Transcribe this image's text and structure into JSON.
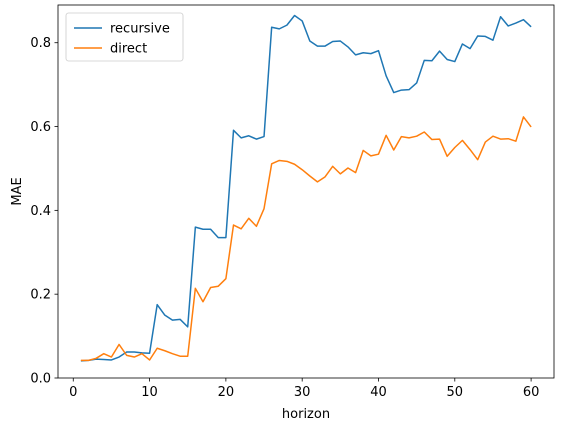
{
  "chart_data": {
    "type": "line",
    "title": "",
    "xlabel": "horizon",
    "ylabel": "MAE",
    "xlim": [
      -2,
      63
    ],
    "ylim": [
      0.0,
      0.89
    ],
    "xticks": [
      0,
      10,
      20,
      30,
      40,
      50,
      60
    ],
    "yticks": [
      0.0,
      0.2,
      0.4,
      0.6,
      0.8
    ],
    "xtick_labels": [
      "0",
      "10",
      "20",
      "30",
      "40",
      "50",
      "60"
    ],
    "ytick_labels": [
      "0.0",
      "0.2",
      "0.4",
      "0.6",
      "0.8"
    ],
    "grid": false,
    "legend_position": "top-left",
    "x": [
      1,
      2,
      3,
      4,
      5,
      6,
      7,
      8,
      9,
      10,
      11,
      12,
      13,
      14,
      15,
      16,
      17,
      18,
      19,
      20,
      21,
      22,
      23,
      24,
      25,
      26,
      27,
      28,
      29,
      30,
      31,
      32,
      33,
      34,
      35,
      36,
      37,
      38,
      39,
      40,
      41,
      42,
      43,
      44,
      45,
      46,
      47,
      48,
      49,
      50,
      51,
      52,
      53,
      54,
      55,
      56,
      57,
      58,
      59,
      60
    ],
    "series": [
      {
        "name": "recursive",
        "color": "#1f77b4",
        "values": [
          0.041,
          0.042,
          0.045,
          0.044,
          0.043,
          0.05,
          0.062,
          0.062,
          0.06,
          0.059,
          0.175,
          0.15,
          0.138,
          0.14,
          0.122,
          0.36,
          0.355,
          0.355,
          0.335,
          0.335,
          0.591,
          0.573,
          0.578,
          0.57,
          0.576,
          0.837,
          0.833,
          0.842,
          0.865,
          0.852,
          0.804,
          0.792,
          0.792,
          0.803,
          0.804,
          0.79,
          0.771,
          0.776,
          0.774,
          0.781,
          0.721,
          0.681,
          0.687,
          0.688,
          0.704,
          0.758,
          0.757,
          0.78,
          0.76,
          0.755,
          0.797,
          0.786,
          0.816,
          0.815,
          0.806,
          0.862,
          0.84,
          0.847,
          0.855,
          0.838
        ]
      },
      {
        "name": "direct",
        "color": "#ff7f0e",
        "values": [
          0.042,
          0.042,
          0.047,
          0.058,
          0.05,
          0.08,
          0.054,
          0.05,
          0.058,
          0.043,
          0.071,
          0.065,
          0.058,
          0.052,
          0.052,
          0.214,
          0.182,
          0.216,
          0.219,
          0.237,
          0.365,
          0.356,
          0.381,
          0.362,
          0.404,
          0.511,
          0.519,
          0.517,
          0.51,
          0.497,
          0.482,
          0.468,
          0.48,
          0.505,
          0.487,
          0.501,
          0.49,
          0.543,
          0.53,
          0.534,
          0.579,
          0.544,
          0.576,
          0.573,
          0.577,
          0.587,
          0.569,
          0.57,
          0.529,
          0.55,
          0.567,
          0.545,
          0.521,
          0.563,
          0.577,
          0.57,
          0.571,
          0.565,
          0.623,
          0.599
        ]
      }
    ]
  }
}
